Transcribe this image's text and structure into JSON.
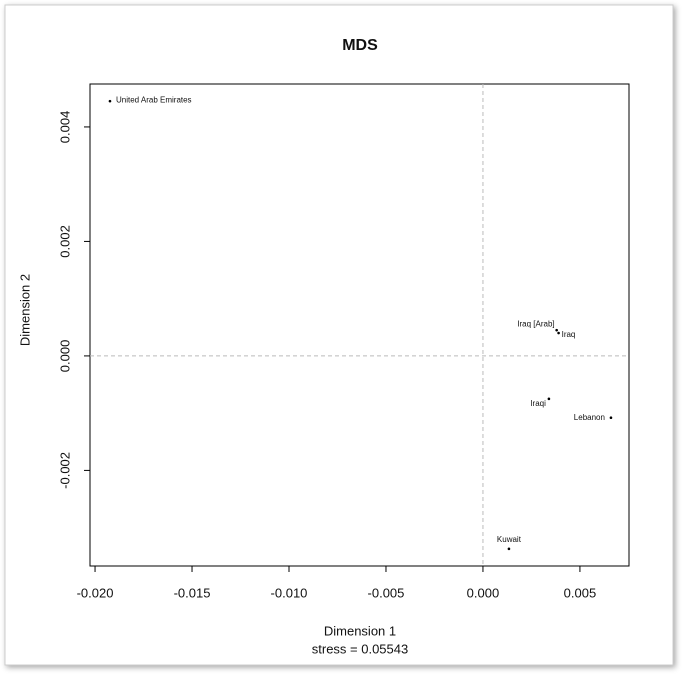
{
  "chart_data": {
    "type": "scatter",
    "title": "MDS",
    "x_label": "Dimension 1",
    "y_label": "Dimension 2",
    "subtitle": "stress = 0.05543",
    "labels": [
      "United Arab Emirates",
      "Iraq [Arab]",
      "Iraq",
      "Iraqi",
      "Lebanon",
      "Kuwait"
    ],
    "x": [
      -0.01923,
      0.0038,
      0.0039,
      0.0034,
      0.0066,
      0.00134
    ],
    "values": [
      0.00445,
      0.00045,
      0.0004,
      -0.00075,
      -0.00108,
      -0.00337
    ],
    "color": "#000000",
    "xlim": [
      -0.02026,
      0.00753
    ],
    "ylim": [
      -0.00367,
      0.00475
    ],
    "xticks": [
      {
        "value": -0.02,
        "label": "-0.020"
      },
      -0.015,
      {
        "value": -0.01,
        "label": "-0.010"
      },
      -0.005,
      {
        "value": 0,
        "label": "0.000"
      },
      0.005
    ],
    "yticks": [
      -0.002,
      {
        "value": 0,
        "label": "0.000"
      },
      0.002,
      0.004
    ],
    "hline": 0,
    "vline": 0
  }
}
